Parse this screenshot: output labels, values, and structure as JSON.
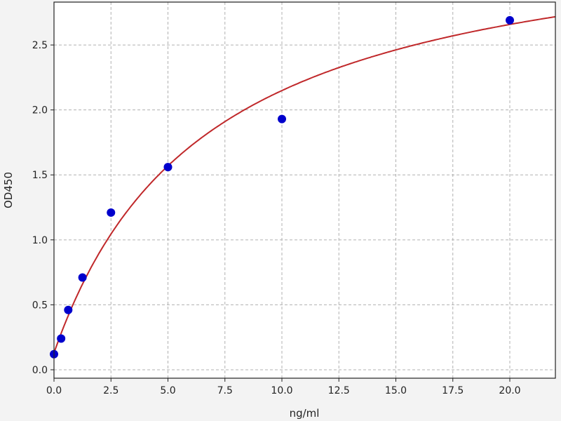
{
  "chart_data": {
    "type": "scatter",
    "title": "",
    "xlabel": "ng/ml",
    "ylabel": "OD450",
    "xlim": [
      0,
      22
    ],
    "ylim": [
      -0.065,
      2.83
    ],
    "grid": true,
    "xticks": [
      "0.0",
      "2.5",
      "5.0",
      "7.5",
      "10.0",
      "12.5",
      "15.0",
      "17.5",
      "20.0"
    ],
    "yticks": [
      "0.0",
      "0.5",
      "1.0",
      "1.5",
      "2.0",
      "2.5"
    ],
    "points": {
      "color": "#0000cc",
      "x": [
        0,
        0.3125,
        0.625,
        1.25,
        2.5,
        5,
        10,
        20
      ],
      "y": [
        0.12,
        0.24,
        0.46,
        0.71,
        1.21,
        1.56,
        1.93,
        2.69
      ]
    },
    "fit_curve": {
      "color": "#c0282a",
      "model": "hyperbola y = y0 + A*x/(K+x)",
      "params": {
        "y0": 0.13,
        "A": 3.38,
        "K": 6.74
      }
    }
  }
}
